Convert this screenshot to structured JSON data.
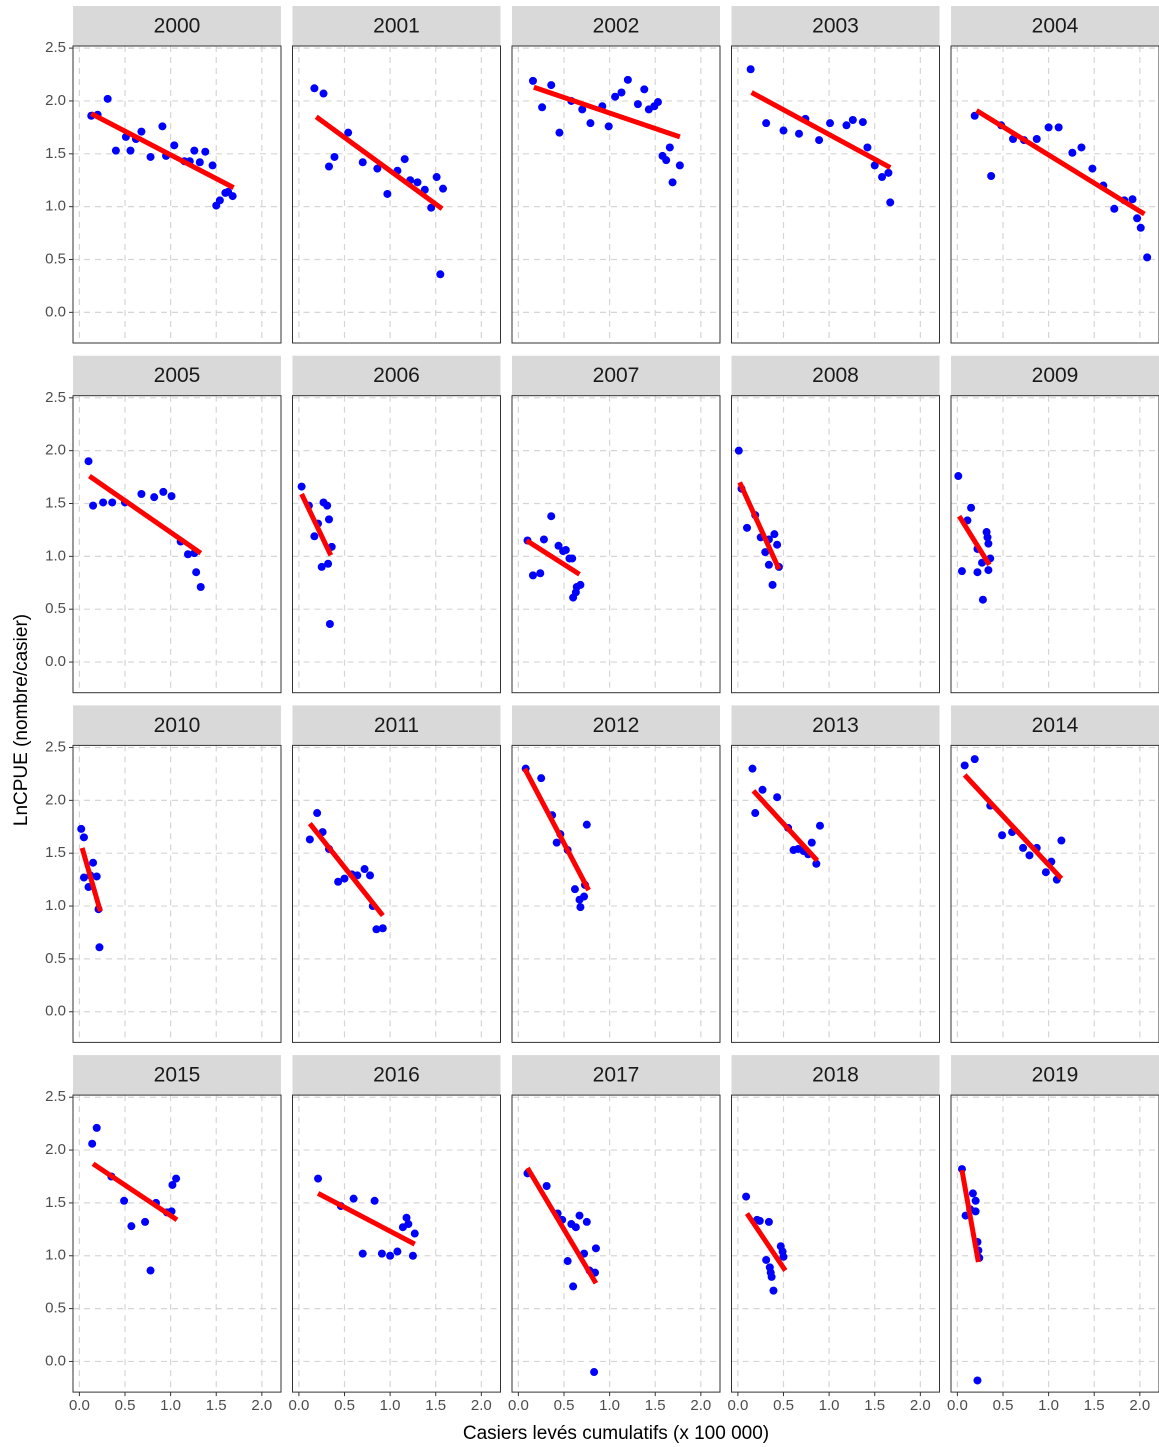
{
  "xlabel": "Casiers levés cumulatifs (x 100 000)",
  "ylabel": "LnCPUE (nombre/casier)",
  "xlim": [
    -0.07,
    2.21
  ],
  "ylim": [
    -0.29,
    2.52
  ],
  "xticks": [
    {
      "value": 0,
      "label": "0.0"
    },
    {
      "value": 0.5,
      "label": "0.5"
    },
    {
      "value": 1,
      "label": "1.0"
    },
    {
      "value": 1.5,
      "label": "1.5"
    },
    {
      "value": 2,
      "label": "2.0"
    }
  ],
  "yticks": [
    {
      "value": 0,
      "label": "0.0"
    },
    {
      "value": 0.5,
      "label": "0.5"
    },
    {
      "value": 1,
      "label": "1.0"
    },
    {
      "value": 1.5,
      "label": "1.5"
    },
    {
      "value": 2,
      "label": "2.0"
    },
    {
      "value": 2.5,
      "label": "2.5"
    }
  ],
  "grid": true,
  "point_color": "#0000ff",
  "fit_color": "#ff0000",
  "chart_data": [
    {
      "type": "scatter",
      "title": "2000",
      "x": [
        0.13,
        0.2,
        0.31,
        0.4,
        0.51,
        0.56,
        0.62,
        0.68,
        0.78,
        0.91,
        0.95,
        1.04,
        1.15,
        1.21,
        1.26,
        1.32,
        1.38,
        1.46,
        1.5,
        1.54,
        1.6,
        1.63,
        1.68
      ],
      "values": [
        1.86,
        1.87,
        2.02,
        1.53,
        1.66,
        1.53,
        1.64,
        1.71,
        1.47,
        1.76,
        1.48,
        1.58,
        1.43,
        1.43,
        1.53,
        1.42,
        1.52,
        1.39,
        1.01,
        1.06,
        1.13,
        1.14,
        1.1
      ],
      "fit": {
        "x": [
          0.13,
          1.69
        ],
        "values": [
          1.88,
          1.18
        ]
      }
    },
    {
      "type": "scatter",
      "title": "2001",
      "x": [
        0.17,
        0.27,
        0.33,
        0.39,
        0.54,
        0.7,
        0.86,
        0.97,
        1.08,
        1.16,
        1.22,
        1.3,
        1.38,
        1.45,
        1.51,
        1.55,
        1.58
      ],
      "values": [
        2.12,
        2.07,
        1.38,
        1.47,
        1.7,
        1.42,
        1.36,
        1.12,
        1.34,
        1.45,
        1.25,
        1.23,
        1.16,
        0.99,
        1.28,
        0.36,
        1.17
      ],
      "fit": {
        "x": [
          0.19,
          1.57
        ],
        "values": [
          1.85,
          0.98
        ]
      }
    },
    {
      "type": "scatter",
      "title": "2002",
      "x": [
        0.16,
        0.26,
        0.36,
        0.45,
        0.58,
        0.7,
        0.79,
        0.92,
        0.99,
        1.06,
        1.13,
        1.2,
        1.31,
        1.38,
        1.43,
        1.49,
        1.53,
        1.58,
        1.62,
        1.66,
        1.69,
        1.77
      ],
      "values": [
        2.19,
        1.94,
        2.15,
        1.7,
        2.0,
        1.92,
        1.79,
        1.95,
        1.76,
        2.04,
        2.08,
        2.2,
        1.97,
        2.11,
        1.92,
        1.95,
        1.99,
        1.48,
        1.44,
        1.56,
        1.23,
        1.39
      ],
      "fit": {
        "x": [
          0.17,
          1.77
        ],
        "values": [
          2.13,
          1.66
        ]
      }
    },
    {
      "type": "scatter",
      "title": "2003",
      "x": [
        0.14,
        0.31,
        0.5,
        0.67,
        0.74,
        0.89,
        1.01,
        1.19,
        1.26,
        1.37,
        1.42,
        1.5,
        1.58,
        1.65,
        1.67
      ],
      "values": [
        2.3,
        1.79,
        1.72,
        1.69,
        1.83,
        1.63,
        1.79,
        1.77,
        1.82,
        1.8,
        1.56,
        1.39,
        1.28,
        1.32,
        1.04
      ],
      "fit": {
        "x": [
          0.15,
          1.67
        ],
        "values": [
          2.08,
          1.37
        ]
      }
    },
    {
      "type": "scatter",
      "title": "2004",
      "x": [
        0.19,
        0.37,
        0.48,
        0.61,
        0.73,
        0.87,
        1.0,
        1.11,
        1.26,
        1.36,
        1.48,
        1.6,
        1.72,
        1.83,
        1.92,
        1.97,
        2.01,
        2.08
      ],
      "values": [
        1.86,
        1.29,
        1.77,
        1.64,
        1.63,
        1.64,
        1.75,
        1.75,
        1.51,
        1.56,
        1.36,
        1.2,
        0.98,
        1.06,
        1.07,
        0.89,
        0.8,
        0.52
      ],
      "fit": {
        "x": [
          0.21,
          2.05
        ],
        "values": [
          1.91,
          0.93
        ]
      }
    },
    {
      "type": "scatter",
      "title": "2005",
      "x": [
        0.1,
        0.15,
        0.26,
        0.36,
        0.5,
        0.68,
        0.82,
        0.92,
        1.01,
        1.11,
        1.19,
        1.26,
        1.28,
        1.33
      ],
      "values": [
        1.9,
        1.48,
        1.51,
        1.51,
        1.51,
        1.59,
        1.56,
        1.61,
        1.57,
        1.14,
        1.02,
        1.03,
        0.85,
        0.71
      ],
      "fit": {
        "x": [
          0.11,
          1.33
        ],
        "values": [
          1.76,
          1.03
        ]
      }
    },
    {
      "type": "scatter",
      "title": "2006",
      "x": [
        0.03,
        0.11,
        0.17,
        0.27,
        0.31,
        0.33,
        0.36,
        0.25,
        0.32,
        0.34,
        0.21
      ],
      "values": [
        1.66,
        1.48,
        1.19,
        1.51,
        1.48,
        1.35,
        1.09,
        0.9,
        0.93,
        0.36,
        1.31
      ],
      "fit": {
        "x": [
          0.03,
          0.35
        ],
        "values": [
          1.59,
          1.01
        ]
      }
    },
    {
      "type": "scatter",
      "title": "2007",
      "x": [
        0.1,
        0.16,
        0.24,
        0.28,
        0.36,
        0.44,
        0.49,
        0.52,
        0.56,
        0.59,
        0.6,
        0.63,
        0.68,
        0.64
      ],
      "values": [
        1.15,
        0.82,
        0.84,
        1.16,
        1.38,
        1.1,
        1.05,
        1.06,
        0.98,
        0.98,
        0.61,
        0.66,
        0.73,
        0.71
      ],
      "fit": {
        "x": [
          0.09,
          0.67
        ],
        "values": [
          1.15,
          0.83
        ]
      }
    },
    {
      "type": "scatter",
      "title": "2008",
      "x": [
        0.01,
        0.04,
        0.1,
        0.19,
        0.25,
        0.3,
        0.34,
        0.38,
        0.4,
        0.43,
        0.45,
        0.34
      ],
      "values": [
        2.0,
        1.64,
        1.27,
        1.39,
        1.18,
        1.04,
        0.92,
        0.73,
        1.21,
        1.11,
        0.9,
        1.16
      ],
      "fit": {
        "x": [
          0.02,
          0.45
        ],
        "values": [
          1.7,
          0.88
        ]
      }
    },
    {
      "type": "scatter",
      "title": "2009",
      "x": [
        0.01,
        0.05,
        0.11,
        0.15,
        0.22,
        0.22,
        0.27,
        0.28,
        0.32,
        0.33,
        0.34,
        0.36,
        0.34
      ],
      "values": [
        1.76,
        0.86,
        1.34,
        1.46,
        1.07,
        0.85,
        0.94,
        0.59,
        1.23,
        1.18,
        1.12,
        0.98,
        0.87
      ],
      "fit": {
        "x": [
          0.02,
          0.35
        ],
        "values": [
          1.38,
          0.92
        ]
      }
    },
    {
      "type": "scatter",
      "title": "2010",
      "x": [
        0.02,
        0.05,
        0.05,
        0.1,
        0.12,
        0.15,
        0.19,
        0.21,
        0.22
      ],
      "values": [
        1.73,
        1.65,
        1.27,
        1.18,
        1.29,
        1.41,
        1.28,
        0.97,
        0.61
      ],
      "fit": {
        "x": [
          0.03,
          0.23
        ],
        "values": [
          1.55,
          0.95
        ]
      }
    },
    {
      "type": "scatter",
      "title": "2011",
      "x": [
        0.12,
        0.2,
        0.26,
        0.33,
        0.43,
        0.5,
        0.58,
        0.64,
        0.72,
        0.78,
        0.81,
        0.85,
        0.92
      ],
      "values": [
        1.63,
        1.88,
        1.7,
        1.54,
        1.23,
        1.26,
        1.3,
        1.29,
        1.35,
        1.29,
        1.0,
        0.78,
        0.79
      ],
      "fit": {
        "x": [
          0.12,
          0.92
        ],
        "values": [
          1.78,
          0.91
        ]
      }
    },
    {
      "type": "scatter",
      "title": "2012",
      "x": [
        0.08,
        0.25,
        0.37,
        0.42,
        0.46,
        0.54,
        0.62,
        0.67,
        0.68,
        0.72,
        0.73,
        0.75
      ],
      "values": [
        2.3,
        2.21,
        1.86,
        1.6,
        1.68,
        1.53,
        1.16,
        1.06,
        0.99,
        1.09,
        1.2,
        1.77
      ],
      "fit": {
        "x": [
          0.07,
          0.77
        ],
        "values": [
          2.3,
          1.15
        ]
      }
    },
    {
      "type": "scatter",
      "title": "2013",
      "x": [
        0.16,
        0.19,
        0.27,
        0.43,
        0.55,
        0.61,
        0.66,
        0.72,
        0.77,
        0.81,
        0.86,
        0.9
      ],
      "values": [
        2.3,
        1.88,
        2.1,
        2.03,
        1.74,
        1.53,
        1.54,
        1.52,
        1.49,
        1.6,
        1.4,
        1.76
      ],
      "fit": {
        "x": [
          0.17,
          0.87
        ],
        "values": [
          2.09,
          1.43
        ]
      }
    },
    {
      "type": "scatter",
      "title": "2014",
      "x": [
        0.08,
        0.19,
        0.36,
        0.49,
        0.6,
        0.72,
        0.79,
        0.87,
        0.97,
        1.03,
        1.09,
        1.14
      ],
      "values": [
        2.33,
        2.39,
        1.95,
        1.67,
        1.7,
        1.55,
        1.48,
        1.55,
        1.32,
        1.42,
        1.25,
        1.62
      ],
      "fit": {
        "x": [
          0.08,
          1.14
        ],
        "values": [
          2.24,
          1.26
        ]
      }
    },
    {
      "type": "scatter",
      "title": "2015",
      "x": [
        0.14,
        0.19,
        0.35,
        0.49,
        0.57,
        0.72,
        0.78,
        0.84,
        0.96,
        1.01,
        1.02,
        1.06
      ],
      "values": [
        2.06,
        2.21,
        1.75,
        1.52,
        1.28,
        1.32,
        0.86,
        1.5,
        1.41,
        1.42,
        1.67,
        1.73
      ],
      "fit": {
        "x": [
          0.15,
          1.07
        ],
        "values": [
          1.87,
          1.34
        ]
      }
    },
    {
      "type": "scatter",
      "title": "2016",
      "x": [
        0.21,
        0.46,
        0.6,
        0.7,
        0.83,
        0.91,
        1.0,
        1.08,
        1.14,
        1.18,
        1.2,
        1.25,
        1.27
      ],
      "values": [
        1.73,
        1.47,
        1.54,
        1.02,
        1.52,
        1.02,
        1.0,
        1.04,
        1.27,
        1.36,
        1.3,
        1.0,
        1.21
      ],
      "fit": {
        "x": [
          0.21,
          1.27
        ],
        "values": [
          1.59,
          1.11
        ]
      }
    },
    {
      "type": "scatter",
      "title": "2017",
      "x": [
        0.1,
        0.31,
        0.43,
        0.48,
        0.54,
        0.58,
        0.6,
        0.67,
        0.72,
        0.75,
        0.78,
        0.84,
        0.85,
        0.83,
        0.63
      ],
      "values": [
        1.78,
        1.66,
        1.4,
        1.34,
        0.95,
        1.3,
        0.71,
        1.38,
        1.02,
        1.32,
        0.86,
        0.84,
        1.07,
        -0.1,
        1.27
      ],
      "fit": {
        "x": [
          0.1,
          0.85
        ],
        "values": [
          1.83,
          0.74
        ]
      }
    },
    {
      "type": "scatter",
      "title": "2018",
      "x": [
        0.09,
        0.21,
        0.24,
        0.31,
        0.34,
        0.35,
        0.36,
        0.37,
        0.39,
        0.47,
        0.49,
        0.5
      ],
      "values": [
        1.56,
        1.34,
        1.33,
        0.96,
        1.32,
        0.89,
        0.84,
        0.8,
        0.67,
        1.09,
        1.04,
        0.99
      ],
      "fit": {
        "x": [
          0.1,
          0.52
        ],
        "values": [
          1.4,
          0.86
        ]
      }
    },
    {
      "type": "scatter",
      "title": "2019",
      "x": [
        0.05,
        0.09,
        0.14,
        0.17,
        0.2,
        0.2,
        0.22,
        0.23,
        0.22,
        0.24
      ],
      "values": [
        1.82,
        1.38,
        1.44,
        1.59,
        1.52,
        1.42,
        1.13,
        1.05,
        -0.18,
        0.98
      ],
      "fit": {
        "x": [
          0.05,
          0.23
        ],
        "values": [
          1.81,
          0.94
        ]
      }
    }
  ]
}
